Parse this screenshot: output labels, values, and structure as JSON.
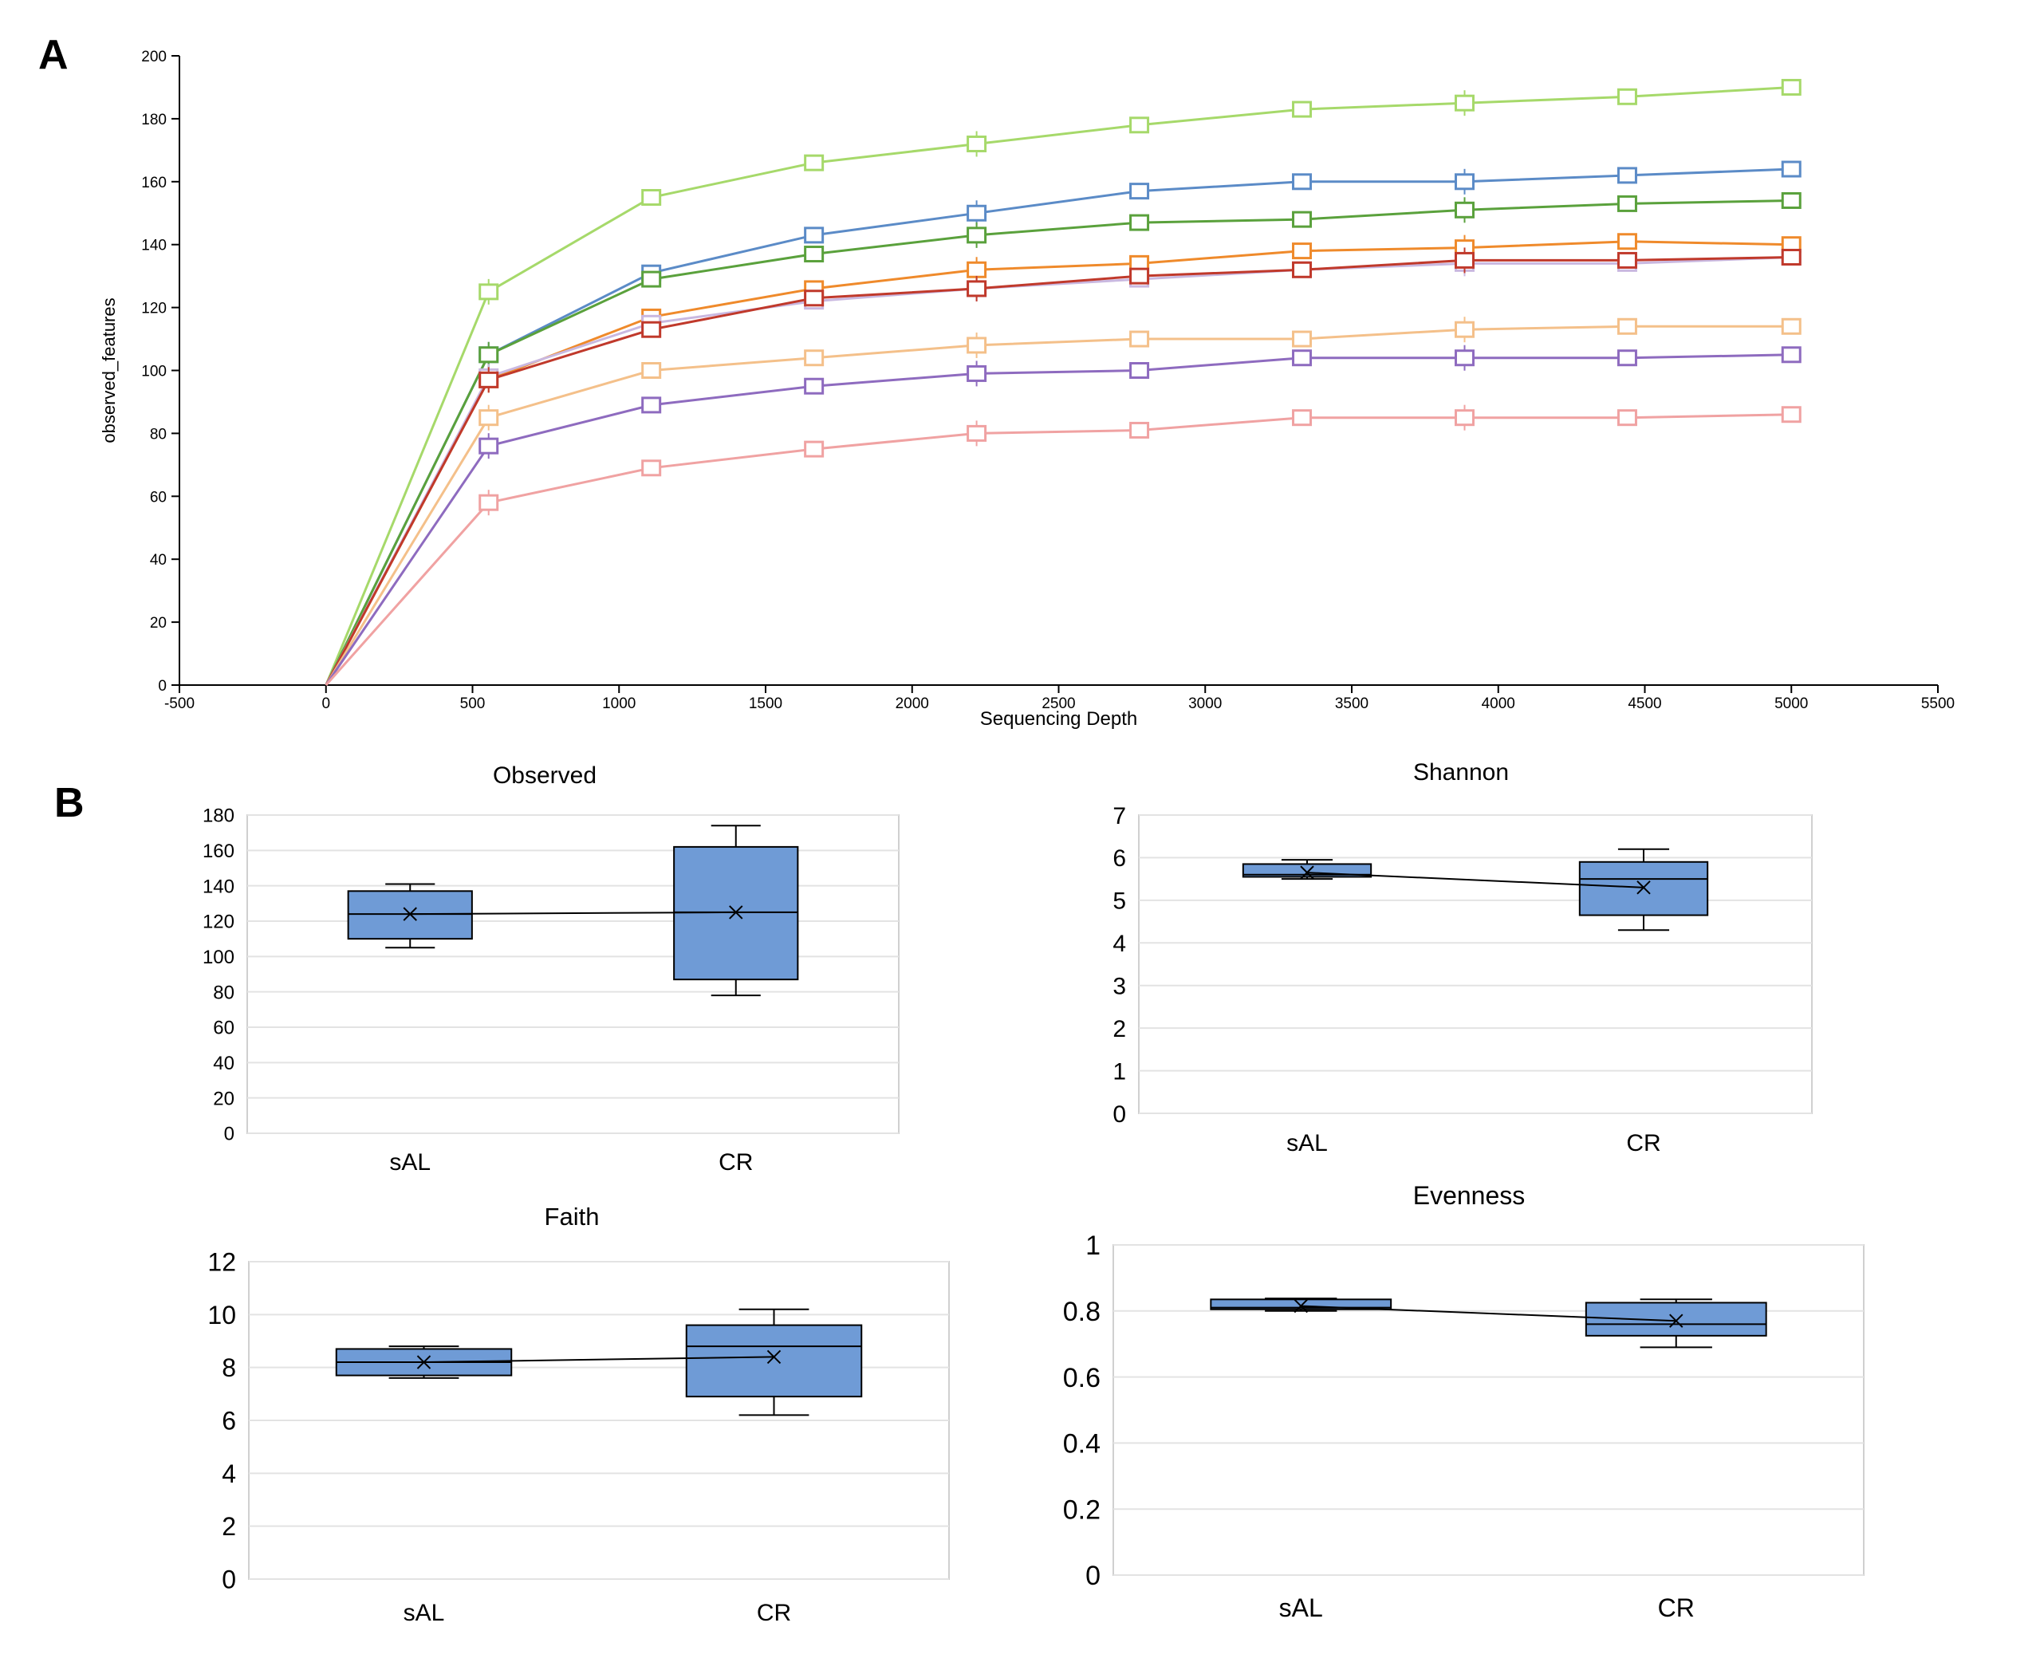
{
  "figure": {
    "panel_a_label": "A",
    "panel_b_label": "B"
  },
  "chart_data": [
    {
      "id": "rarefaction",
      "type": "line",
      "xlabel": "Sequencing Depth",
      "ylabel": "observed_features",
      "xlim": [
        -500,
        5500
      ],
      "ylim": [
        0,
        200
      ],
      "xticks": [
        -500,
        0,
        500,
        1000,
        1500,
        2000,
        2500,
        3000,
        3500,
        4000,
        4500,
        5000,
        5500
      ],
      "yticks": [
        0,
        20,
        40,
        60,
        80,
        100,
        120,
        140,
        160,
        180,
        200
      ],
      "x": [
        0,
        555,
        1110,
        1665,
        2220,
        2775,
        3330,
        3885,
        4440,
        5000
      ],
      "series": [
        {
          "name": "light green",
          "color": "#a6d96a",
          "values": [
            0,
            125,
            155,
            166,
            172,
            178,
            183,
            185,
            187,
            190
          ]
        },
        {
          "name": "blue",
          "color": "#5b8bc7",
          "values": [
            0,
            105,
            131,
            143,
            150,
            157,
            160,
            160,
            162,
            164
          ]
        },
        {
          "name": "green",
          "color": "#5aa13c",
          "values": [
            0,
            105,
            129,
            137,
            143,
            147,
            148,
            151,
            153,
            154
          ]
        },
        {
          "name": "orange",
          "color": "#ef8a2b",
          "values": [
            0,
            97,
            117,
            126,
            132,
            134,
            138,
            139,
            141,
            140
          ]
        },
        {
          "name": "lavender",
          "color": "#c9b8e0",
          "values": [
            0,
            98,
            115,
            122,
            126,
            129,
            132,
            134,
            134,
            136
          ]
        },
        {
          "name": "dark red",
          "color": "#c0392b",
          "values": [
            0,
            97,
            113,
            123,
            126,
            130,
            132,
            135,
            135,
            136
          ]
        },
        {
          "name": "peach",
          "color": "#f4c08a",
          "values": [
            0,
            85,
            100,
            104,
            108,
            110,
            110,
            113,
            114,
            114
          ]
        },
        {
          "name": "purple",
          "color": "#8e6bbf",
          "values": [
            0,
            76,
            89,
            95,
            99,
            100,
            104,
            104,
            104,
            105
          ]
        },
        {
          "name": "pink",
          "color": "#f0a2a2",
          "values": [
            0,
            58,
            69,
            75,
            80,
            81,
            85,
            85,
            85,
            86
          ]
        }
      ]
    },
    {
      "id": "observed",
      "type": "box",
      "title": "Observed",
      "categories": [
        "sAL",
        "CR"
      ],
      "ylim": [
        0,
        180
      ],
      "yticks": [
        0,
        20,
        40,
        60,
        80,
        100,
        120,
        140,
        160,
        180
      ],
      "boxes": [
        {
          "min": 105,
          "q1": 110,
          "median": 124,
          "q3": 137,
          "max": 141,
          "mean": 124
        },
        {
          "min": 78,
          "q1": 87,
          "median": 125,
          "q3": 162,
          "max": 174,
          "mean": 125
        }
      ]
    },
    {
      "id": "shannon",
      "type": "box",
      "title": "Shannon",
      "categories": [
        "sAL",
        "CR"
      ],
      "ylim": [
        0,
        7
      ],
      "yticks": [
        0,
        1,
        2,
        3,
        4,
        5,
        6,
        7
      ],
      "boxes": [
        {
          "min": 5.5,
          "q1": 5.55,
          "median": 5.6,
          "q3": 5.85,
          "max": 5.95,
          "mean": 5.65
        },
        {
          "min": 4.3,
          "q1": 4.65,
          "median": 5.5,
          "q3": 5.9,
          "max": 6.2,
          "mean": 5.3
        }
      ]
    },
    {
      "id": "faith",
      "type": "box",
      "title": "Faith",
      "categories": [
        "sAL",
        "CR"
      ],
      "ylim": [
        0,
        12
      ],
      "yticks": [
        0,
        2,
        4,
        6,
        8,
        10,
        12
      ],
      "boxes": [
        {
          "min": 7.6,
          "q1": 7.7,
          "median": 8.2,
          "q3": 8.7,
          "max": 8.8,
          "mean": 8.2
        },
        {
          "min": 6.2,
          "q1": 6.9,
          "median": 8.8,
          "q3": 9.6,
          "max": 10.2,
          "mean": 8.4
        }
      ]
    },
    {
      "id": "evenness",
      "type": "box",
      "title": "Evenness",
      "categories": [
        "sAL",
        "CR"
      ],
      "ylim": [
        0,
        1
      ],
      "yticks": [
        "0",
        "0.2",
        "0.4",
        "0.6",
        "0.8",
        "1"
      ],
      "boxes": [
        {
          "min": 0.8,
          "q1": 0.805,
          "median": 0.81,
          "q3": 0.835,
          "max": 0.838,
          "mean": 0.815
        },
        {
          "min": 0.69,
          "q1": 0.725,
          "median": 0.76,
          "q3": 0.825,
          "max": 0.835,
          "mean": 0.77
        }
      ]
    }
  ]
}
